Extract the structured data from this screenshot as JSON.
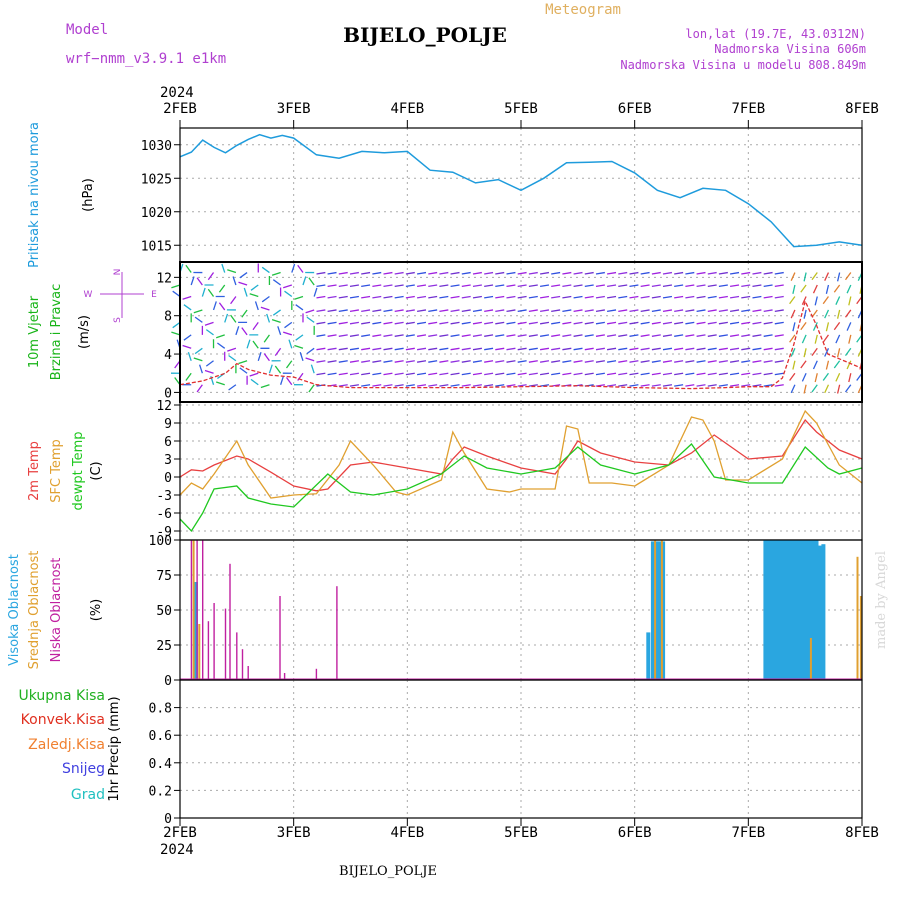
{
  "header": {
    "model_label": "Model",
    "model_name": "wrf−nmm_v3.9.1  e1km",
    "station_title": "BIJELO_POLJE",
    "chart_kind": "Meteogram",
    "lonlat": "lon,lat (19.7E, 43.0312N)",
    "elevation": "Nadmorska Visina 606m",
    "model_elevation": "Nadmorska Visina u modelu 808.849m",
    "footer_station": "BIJELO_POLJE",
    "watermark": "made by Angel"
  },
  "time_axis": {
    "year": "2024",
    "ticks": [
      "2FEB",
      "3FEB",
      "4FEB",
      "5FEB",
      "6FEB",
      "7FEB",
      "8FEB"
    ]
  },
  "colors": {
    "pressure": "#1e9bdc",
    "wind_label": "#18b418",
    "temp2m": "#e84040",
    "sfc": "#e0a030",
    "dewpt": "#20c820",
    "high_cloud": "#2aa6e0",
    "mid_cloud": "#e0a030",
    "low_cloud": "#c020a0",
    "purple_text": "#b040d0",
    "total_precip": "#20b020",
    "conv_precip": "#e03020",
    "frz_precip": "#f08030",
    "snow": "#4040e0",
    "hail": "#20c0c0"
  },
  "chart_data": [
    {
      "type": "line",
      "panel": "pressure",
      "ylabel_lines": [
        "Pritisak na nivou mora",
        "(hPa)"
      ],
      "ylim": [
        1012.5,
        1032.5
      ],
      "yticks": [
        1015,
        1020,
        1025,
        1030
      ],
      "grid": true,
      "series": [
        {
          "x": [
            0,
            0.1,
            0.2,
            0.3,
            0.4,
            0.5,
            0.6,
            0.7,
            0.8,
            0.9,
            1.0,
            1.2,
            1.4,
            1.6,
            1.8,
            2.0,
            2.2,
            2.4,
            2.6,
            2.8,
            3.0,
            3.2,
            3.4,
            3.6,
            3.8,
            4.0,
            4.2,
            4.4,
            4.6,
            4.8,
            5.0,
            5.2,
            5.4,
            5.6,
            5.8,
            6.0
          ],
          "values": [
            1028.2,
            1028.9,
            1030.7,
            1029.6,
            1028.8,
            1029.9,
            1030.8,
            1031.5,
            1031.0,
            1031.4,
            1031.0,
            1028.5,
            1028.0,
            1029.0,
            1028.8,
            1029.0,
            1026.2,
            1025.9,
            1024.3,
            1024.8,
            1023.2,
            1025.0,
            1027.3,
            1027.4,
            1027.5,
            1025.8,
            1023.2,
            1022.1,
            1023.5,
            1023.2,
            1021.2,
            1018.5,
            1014.8,
            1015.0,
            1015.5,
            1015.0
          ]
        }
      ]
    },
    {
      "type": "scatter",
      "panel": "wind",
      "ylabel_lines": [
        "10m Vjetar",
        "Brzina i Pravac",
        "(m/s)"
      ],
      "compass": {
        "n": "N",
        "e": "E",
        "w": "W",
        "s": "S"
      },
      "ylim": [
        -1,
        13.6
      ],
      "yticks": [
        0,
        4,
        8,
        12
      ],
      "grid": true,
      "series": [
        {
          "name": "speed",
          "x": [
            0,
            0.2,
            0.4,
            0.5,
            0.6,
            0.8,
            1.0,
            1.2,
            1.5,
            2.0,
            2.5,
            3.0,
            3.5,
            4.0,
            4.5,
            4.8,
            5.0,
            5.2,
            5.3,
            5.4,
            5.5,
            5.6,
            5.7,
            5.8,
            6.0
          ],
          "values": [
            0.8,
            1.2,
            2.0,
            3.0,
            2.4,
            1.8,
            1.6,
            0.8,
            0.5,
            0.5,
            0.5,
            0.6,
            0.7,
            0.5,
            0.4,
            0.5,
            0.6,
            0.6,
            1.5,
            5.0,
            9.5,
            7.0,
            4.0,
            3.5,
            2.5
          ]
        }
      ]
    },
    {
      "type": "line",
      "panel": "temperature",
      "ylabel_lines": [
        "2m Temp",
        "SFC Temp",
        "dewpt Temp",
        "(C)"
      ],
      "ylim": [
        -10.5,
        12.5
      ],
      "yticks": [
        -9,
        -6,
        -3,
        0,
        3,
        6,
        9,
        12
      ],
      "grid": true,
      "series": [
        {
          "name": "2m Temp",
          "x": [
            0,
            0.1,
            0.2,
            0.3,
            0.5,
            0.6,
            0.8,
            1.0,
            1.2,
            1.3,
            1.5,
            1.7,
            2.0,
            2.3,
            2.4,
            2.5,
            2.7,
            3.0,
            3.3,
            3.4,
            3.5,
            3.7,
            4.0,
            4.3,
            4.5,
            4.7,
            5.0,
            5.3,
            5.5,
            5.6,
            5.8,
            6.0
          ],
          "values": [
            0.0,
            1.2,
            1.0,
            2.0,
            3.5,
            3.0,
            0.8,
            -1.5,
            -2.3,
            -2.0,
            2.0,
            2.5,
            1.5,
            0.5,
            3.0,
            5.0,
            3.5,
            1.5,
            0.5,
            3.0,
            6.0,
            4.0,
            2.5,
            2.0,
            4.0,
            7.0,
            3.0,
            3.5,
            9.5,
            7.5,
            4.5,
            3.0
          ]
        },
        {
          "name": "SFC Temp",
          "x": [
            0,
            0.1,
            0.2,
            0.3,
            0.5,
            0.6,
            0.8,
            1.0,
            1.2,
            1.4,
            1.5,
            1.7,
            1.9,
            2.0,
            2.3,
            2.4,
            2.5,
            2.7,
            2.9,
            3.0,
            3.3,
            3.4,
            3.5,
            3.6,
            3.8,
            4.0,
            4.3,
            4.5,
            4.6,
            4.7,
            4.8,
            5.0,
            5.3,
            5.5,
            5.6,
            5.8,
            6.0
          ],
          "values": [
            -3.0,
            -1.0,
            -2.0,
            0.5,
            6.0,
            2.0,
            -3.5,
            -3.0,
            -2.8,
            2.0,
            6.0,
            2.0,
            -2.5,
            -3.0,
            -0.5,
            7.5,
            4.0,
            -2.0,
            -2.5,
            -2.0,
            -2.0,
            8.5,
            8.0,
            -1.0,
            -1.0,
            -1.5,
            2.0,
            10.0,
            9.5,
            6.0,
            -0.5,
            -0.5,
            3.0,
            11.0,
            9.0,
            2.0,
            -1.0
          ]
        },
        {
          "name": "dewpt Temp",
          "x": [
            0,
            0.1,
            0.2,
            0.3,
            0.5,
            0.6,
            0.8,
            1.0,
            1.3,
            1.5,
            1.7,
            2.0,
            2.3,
            2.5,
            2.7,
            3.0,
            3.3,
            3.5,
            3.7,
            4.0,
            4.3,
            4.5,
            4.7,
            5.0,
            5.3,
            5.5,
            5.7,
            5.8,
            6.0
          ],
          "values": [
            -7.0,
            -9.0,
            -6.0,
            -2.0,
            -1.5,
            -3.5,
            -4.5,
            -5.0,
            0.5,
            -2.5,
            -3.0,
            -2.0,
            0.5,
            3.5,
            1.5,
            0.5,
            1.5,
            5.0,
            2.0,
            0.5,
            2.0,
            5.5,
            0.0,
            -1.0,
            -1.0,
            5.0,
            1.5,
            0.5,
            1.5
          ]
        }
      ]
    },
    {
      "type": "bar",
      "panel": "cloud",
      "ylabel_lines": [
        "Visoka Oblacnost",
        "Srednja Oblacnost",
        "Niska Oblacnost",
        "(%)"
      ],
      "ylim": [
        0,
        100
      ],
      "yticks": [
        0,
        25,
        50,
        75,
        100
      ],
      "grid": true,
      "series": [
        {
          "name": "Visoka Oblacnost",
          "x": [
            0.14,
            4.12,
            4.16,
            4.19,
            4.22,
            4.25,
            5.15,
            5.18,
            5.21,
            5.24,
            5.27,
            5.3,
            5.33,
            5.36,
            5.39,
            5.42,
            5.45,
            5.48,
            5.51,
            5.54,
            5.57,
            5.6,
            5.63,
            5.66
          ],
          "values": [
            70,
            34,
            99,
            99,
            99,
            99,
            100,
            100,
            100,
            100,
            100,
            100,
            100,
            100,
            100,
            100,
            100,
            100,
            100,
            100,
            100,
            100,
            96,
            97
          ]
        },
        {
          "name": "Srednja Oblacnost",
          "x": [
            0.12,
            0.17,
            4.18,
            4.24,
            5.55,
            5.96,
            5.99
          ],
          "values": [
            100,
            40,
            100,
            100,
            30,
            88,
            60
          ]
        },
        {
          "name": "Niska Oblacnost",
          "x": [
            0.1,
            0.15,
            0.2,
            0.25,
            0.3,
            0.4,
            0.44,
            0.5,
            0.55,
            0.6,
            0.88,
            0.92,
            1.2,
            1.38
          ],
          "values": [
            100,
            100,
            100,
            42,
            55,
            51,
            83,
            34,
            22,
            10,
            60,
            5,
            8,
            67
          ]
        }
      ]
    },
    {
      "type": "bar",
      "panel": "precip",
      "ylabel_lines": [
        "1hr Precip (mm)"
      ],
      "legend": [
        "Ukupna Kisa",
        "Konvek.Kisa",
        "Zaledj.Kisa",
        "Snijeg",
        "Grad"
      ],
      "ylim": [
        0,
        1.0
      ],
      "yticks": [
        0,
        0.2,
        0.4,
        0.6,
        0.8
      ],
      "grid": true,
      "series": [
        {
          "name": "Ukupna Kisa",
          "values": [
            0
          ]
        }
      ]
    }
  ]
}
